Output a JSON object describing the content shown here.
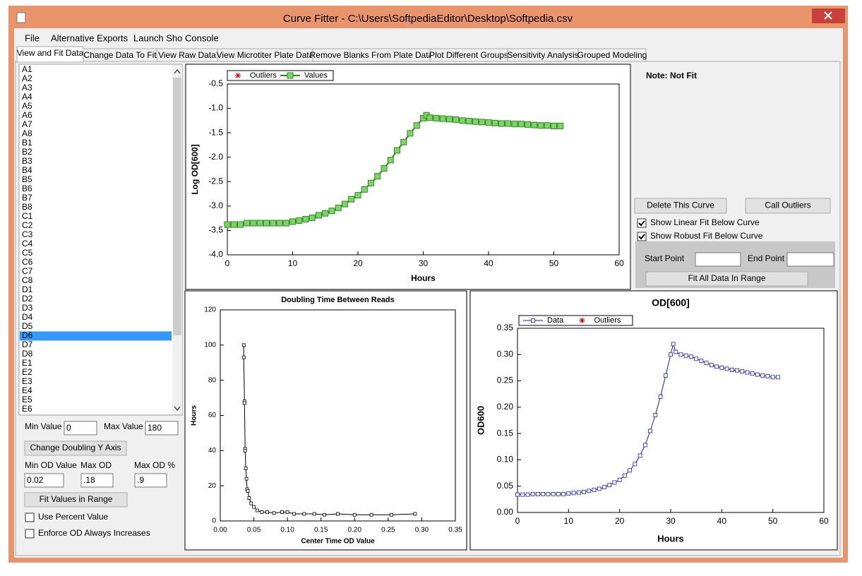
{
  "window": {
    "title": "Curve Fitter - C:\\Users\\SoftpediaEditor\\Desktop\\Softpedia.csv"
  },
  "menu": [
    "File",
    "Alternative Exports",
    "Launch Sho Console"
  ],
  "tabs": [
    "View and Fit Data",
    "Change Data To Fit",
    "View Raw Data",
    "View Microtiter Plate Data",
    "Remove Blanks From Plate Data",
    "Plot Different Groups",
    "Sensitivity Analysis",
    "Grouped Modeling"
  ],
  "wells": {
    "items": [
      "A1",
      "A2",
      "A3",
      "A4",
      "A5",
      "A6",
      "A7",
      "A8",
      "B1",
      "B2",
      "B3",
      "B4",
      "B5",
      "B6",
      "B7",
      "B8",
      "C1",
      "C2",
      "C3",
      "C4",
      "C5",
      "C6",
      "C7",
      "C8",
      "D1",
      "D2",
      "D3",
      "D4",
      "D5",
      "D6",
      "D7",
      "D8",
      "E1",
      "E2",
      "E3",
      "E4",
      "E5",
      "E6"
    ],
    "selected": 29
  },
  "left_controls": {
    "min_value": {
      "label": "Min Value",
      "value": "0"
    },
    "max_value": {
      "label": "Max Value",
      "value": "180"
    },
    "change_doubling_button": "Change Doubling Y Axis",
    "min_od": {
      "label": "Min OD Value",
      "value": "0.02"
    },
    "max_od": {
      "label": "Max OD",
      "value": ".18"
    },
    "max_od_pct": {
      "label": "Max OD %",
      "value": ".9"
    },
    "fit_button": "Fit Values in Range",
    "use_percent": {
      "label": "Use Percent Value",
      "checked": false
    },
    "enforce_od": {
      "label": "Enforce OD Always Increases",
      "checked": false
    }
  },
  "right_controls": {
    "note": "Note: Not Fit",
    "delete_button": "Delete This Curve",
    "outliers_button": "Call Outliers",
    "linear_fit": {
      "label": "Show Linear Fit Below Curve",
      "checked": true
    },
    "robust_fit": {
      "label": "Show Robust Fit Below Curve",
      "checked": true
    },
    "start_point": {
      "label": "Start Point"
    },
    "end_point": {
      "label": "End Point"
    },
    "fit_all_button": "Fit All Data In Range"
  },
  "chart_data": [
    {
      "type": "line",
      "x_label": "Hours",
      "y_label": "Log OD[600]",
      "xlim": [
        0,
        60
      ],
      "xticks": [
        0,
        10,
        20,
        30,
        40,
        50,
        60
      ],
      "ylim": [
        -4,
        -0.5
      ],
      "yticks": [
        {
          "value": -4,
          "label": "-4.0"
        },
        -3.5,
        {
          "value": -3,
          "label": "-3.0"
        },
        -2.5,
        {
          "value": -2,
          "label": "-2.0"
        },
        -1.5,
        {
          "value": -1,
          "label": "-1.0"
        },
        -0.5
      ],
      "x": [
        0,
        1,
        2,
        3,
        4,
        5,
        6,
        7,
        8,
        9,
        10,
        11,
        12,
        13,
        14,
        15,
        16,
        17,
        18,
        19,
        20,
        21,
        22,
        23,
        24,
        25,
        26,
        27,
        28,
        29,
        30,
        30.5,
        31,
        32,
        33,
        34,
        35,
        36,
        37,
        38,
        39,
        40,
        41,
        42,
        43,
        44,
        45,
        46,
        47,
        48,
        49,
        50,
        51
      ],
      "series": [
        {
          "name": "Values",
          "color": "#2a8c1a",
          "values": [
            -3.38,
            -3.38,
            -3.38,
            -3.35,
            -3.35,
            -3.35,
            -3.35,
            -3.35,
            -3.35,
            -3.35,
            -3.32,
            -3.3,
            -3.27,
            -3.24,
            -3.19,
            -3.15,
            -3.1,
            -3.04,
            -2.96,
            -2.86,
            -2.78,
            -2.66,
            -2.53,
            -2.39,
            -2.23,
            -2.06,
            -1.86,
            -1.69,
            -1.51,
            -1.35,
            -1.2,
            -1.14,
            -1.19,
            -1.2,
            -1.21,
            -1.22,
            -1.23,
            -1.25,
            -1.26,
            -1.27,
            -1.28,
            -1.29,
            -1.3,
            -1.31,
            -1.31,
            -1.32,
            -1.32,
            -1.33,
            -1.34,
            -1.35,
            -1.35,
            -1.36,
            -1.36
          ]
        }
      ],
      "outliers": {
        "name": "Outliers",
        "color": "#d00000"
      },
      "outliers_first": true
    },
    {
      "type": "line",
      "title": "Doubling Time Between Reads",
      "x_label": "Center Time OD Value",
      "y_label": "Hours",
      "xlim": [
        0,
        0.35
      ],
      "xticks": [
        {
          "value": 0,
          "label": "0.00"
        },
        0.05,
        {
          "value": 0.1,
          "label": "0.10"
        },
        0.15,
        {
          "value": 0.2,
          "label": "0.20"
        },
        0.25,
        {
          "value": 0.3,
          "label": "0.30"
        },
        0.35
      ],
      "ylim": [
        0,
        120
      ],
      "yticks": [
        0,
        20,
        40,
        60,
        80,
        100,
        120
      ],
      "x": [
        0.035,
        0.035,
        0.036,
        0.036,
        0.037,
        0.037,
        0.038,
        0.039,
        0.04,
        0.041,
        0.043,
        0.046,
        0.05,
        0.055,
        0.062,
        0.07,
        0.08,
        0.092,
        0.1,
        0.11,
        0.125,
        0.14,
        0.155,
        0.175,
        0.2,
        0.225,
        0.255,
        0.29
      ],
      "series": [
        {
          "color": "#000000",
          "values": [
            100,
            93,
            68,
            67,
            41,
            40,
            30,
            24,
            18,
            17,
            13,
            10,
            8,
            6,
            5,
            5,
            4.5,
            5,
            5,
            4,
            4,
            4,
            3.5,
            4,
            3.5,
            3.5,
            3.5,
            4
          ]
        }
      ]
    },
    {
      "type": "line",
      "title": "OD[600]",
      "x_label": "Hours",
      "y_label": "OD600",
      "xlim": [
        0,
        60
      ],
      "xticks": [
        0,
        10,
        20,
        30,
        40,
        50,
        60
      ],
      "ylim": [
        0,
        0.35
      ],
      "yticks": [
        {
          "value": 0,
          "label": "0.00"
        },
        0.05,
        {
          "value": 0.1,
          "label": "0.10"
        },
        0.15,
        {
          "value": 0.2,
          "label": "0.20"
        },
        0.25,
        {
          "value": 0.3,
          "label": "0.30"
        },
        0.35
      ],
      "x": [
        0,
        1,
        2,
        3,
        4,
        5,
        6,
        7,
        8,
        9,
        10,
        11,
        12,
        13,
        14,
        15,
        16,
        17,
        18,
        19,
        20,
        21,
        22,
        23,
        24,
        25,
        26,
        27,
        28,
        29,
        30,
        30.5,
        31,
        32,
        33,
        34,
        35,
        36,
        37,
        38,
        39,
        40,
        41,
        42,
        43,
        44,
        45,
        46,
        47,
        48,
        49,
        50,
        51
      ],
      "series": [
        {
          "name": "Data",
          "color": "#1a1acc",
          "values": [
            0.034,
            0.034,
            0.034,
            0.035,
            0.035,
            0.035,
            0.035,
            0.035,
            0.035,
            0.035,
            0.036,
            0.037,
            0.038,
            0.039,
            0.041,
            0.043,
            0.045,
            0.048,
            0.052,
            0.057,
            0.062,
            0.07,
            0.08,
            0.092,
            0.108,
            0.128,
            0.155,
            0.185,
            0.22,
            0.26,
            0.3,
            0.32,
            0.305,
            0.3,
            0.298,
            0.296,
            0.292,
            0.288,
            0.284,
            0.28,
            0.277,
            0.275,
            0.273,
            0.271,
            0.27,
            0.268,
            0.266,
            0.264,
            0.262,
            0.26,
            0.259,
            0.257,
            0.257
          ]
        }
      ],
      "outliers": {
        "name": "Outliers",
        "color": "#d00000"
      },
      "outliers_first": false
    }
  ]
}
